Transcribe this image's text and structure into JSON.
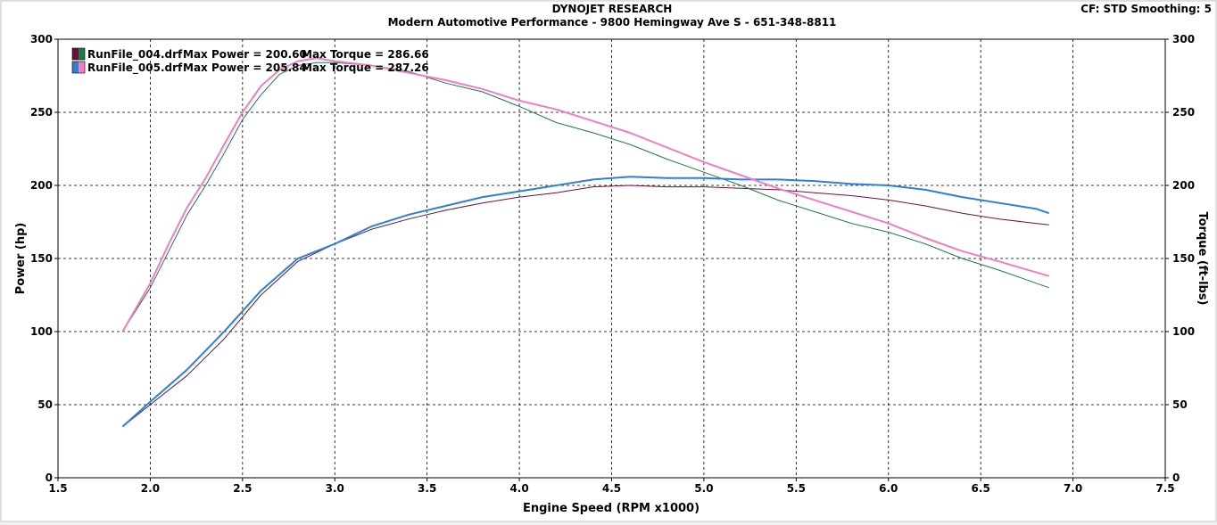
{
  "header": {
    "title": "DYNOJET RESEARCH",
    "subtitle": "Modern Automotive Performance - 9800 Hemingway Ave S - 651-348-8811",
    "settings": "CF: STD  Smoothing: 5"
  },
  "chart_data": {
    "type": "line",
    "xlabel": "Engine Speed (RPM x1000)",
    "ylabel_left": "Power (hp)",
    "ylabel_right": "Torque (ft-lbs)",
    "xlim": [
      1.5,
      7.5
    ],
    "ylim": [
      0,
      300
    ],
    "ylim_right": [
      0,
      300
    ],
    "x_ticks": [
      "1.5",
      "2.0",
      "2.5",
      "3.0",
      "3.5",
      "4.0",
      "4.5",
      "5.0",
      "5.5",
      "6.0",
      "6.5",
      "7.0",
      "7.5"
    ],
    "y_ticks": [
      "0",
      "50",
      "100",
      "150",
      "200",
      "250",
      "300"
    ],
    "grid": true,
    "legend_position": "top-left",
    "legend": [
      {
        "file": "RunFile_004.drf",
        "power": "Max Power = 200.60",
        "torque": "Max Torque = 286.66",
        "colors": [
          "#6a1040",
          "#1f7a4a"
        ]
      },
      {
        "file": "RunFile_005.drf",
        "power": "Max Power = 205.84",
        "torque": "Max Torque = 287.26",
        "colors": [
          "#2f7fd8",
          "#ee7fc0"
        ]
      }
    ],
    "series": [
      {
        "color": "#6a1040",
        "axis": "left",
        "width": 1,
        "x": [
          1.85,
          2.0,
          2.2,
          2.4,
          2.6,
          2.8,
          3.0,
          3.2,
          3.4,
          3.6,
          3.8,
          4.0,
          4.2,
          4.4,
          4.6,
          4.8,
          5.0,
          5.2,
          5.4,
          5.6,
          5.8,
          6.0,
          6.2,
          6.4,
          6.6,
          6.8,
          6.87
        ],
        "y": [
          35,
          50,
          70,
          95,
          125,
          148,
          160,
          170,
          177,
          183,
          188,
          192,
          195,
          199,
          200,
          199,
          199,
          198,
          197,
          195,
          193,
          190,
          186,
          181,
          177,
          174,
          173
        ]
      },
      {
        "color": "#1f7a4a",
        "axis": "right",
        "width": 1,
        "x": [
          1.85,
          2.0,
          2.1,
          2.2,
          2.3,
          2.4,
          2.5,
          2.6,
          2.7,
          2.8,
          2.9,
          3.0,
          3.2,
          3.4,
          3.6,
          3.8,
          4.0,
          4.2,
          4.4,
          4.6,
          4.8,
          5.0,
          5.2,
          5.4,
          5.6,
          5.8,
          6.0,
          6.2,
          6.4,
          6.6,
          6.87
        ],
        "y": [
          100,
          130,
          155,
          180,
          200,
          222,
          245,
          262,
          276,
          282,
          284,
          284,
          282,
          278,
          270,
          264,
          254,
          243,
          236,
          228,
          218,
          209,
          200,
          190,
          182,
          174,
          168,
          160,
          150,
          142,
          130
        ]
      },
      {
        "color": "#2f7fd8",
        "axis": "left",
        "width": 2,
        "x": [
          1.85,
          2.0,
          2.2,
          2.4,
          2.6,
          2.8,
          3.0,
          3.2,
          3.4,
          3.6,
          3.8,
          4.0,
          4.2,
          4.4,
          4.6,
          4.8,
          5.0,
          5.2,
          5.4,
          5.6,
          5.8,
          6.0,
          6.2,
          6.4,
          6.6,
          6.8,
          6.87
        ],
        "y": [
          35,
          52,
          74,
          100,
          128,
          150,
          160,
          172,
          180,
          186,
          192,
          196,
          200,
          204,
          206,
          205,
          205,
          204,
          204,
          203,
          201,
          200,
          197,
          192,
          188,
          184,
          181
        ]
      },
      {
        "color": "#ee7fc0",
        "axis": "right",
        "width": 2,
        "x": [
          1.85,
          2.0,
          2.1,
          2.2,
          2.3,
          2.4,
          2.5,
          2.6,
          2.7,
          2.8,
          2.9,
          3.0,
          3.2,
          3.4,
          3.6,
          3.8,
          4.0,
          4.2,
          4.4,
          4.6,
          4.8,
          5.0,
          5.2,
          5.4,
          5.6,
          5.8,
          6.0,
          6.2,
          6.4,
          6.6,
          6.87
        ],
        "y": [
          100,
          133,
          160,
          185,
          205,
          228,
          250,
          268,
          279,
          285,
          287,
          285,
          282,
          277,
          272,
          266,
          258,
          252,
          244,
          236,
          226,
          216,
          207,
          198,
          190,
          182,
          174,
          164,
          155,
          148,
          138
        ]
      }
    ]
  }
}
